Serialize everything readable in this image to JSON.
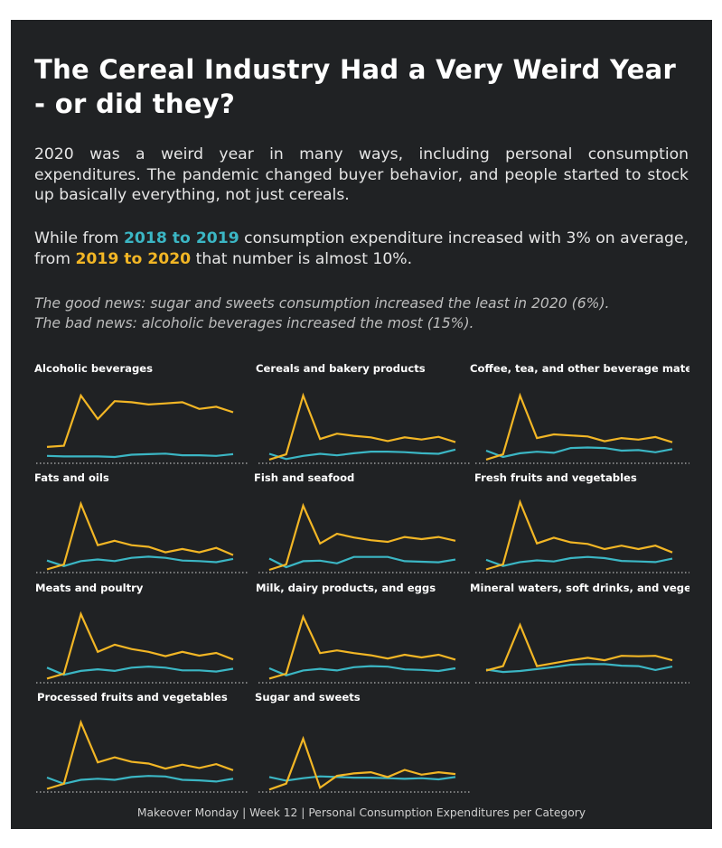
{
  "title": "The Cereal Industry Had a Very Weird Year - or did they?",
  "intro": {
    "p1": "2020 was a weird year in many ways, including personal consumption expenditures. The pandemic changed buyer behavior, and people started to stock up basically everything, not just cereals.",
    "p2_a": "While from ",
    "p2_hl1": "2018 to 2019",
    "p2_b": " consumption expenditure increased with 3% on average, from ",
    "p2_hl2": "2019 to 2020",
    "p2_c": " that number is almost 10%."
  },
  "news": {
    "good": "The good news: sugar and sweets consumption increased the least in 2020 (6%).",
    "bad": "The bad news: alcoholic beverages increased the most (15%)."
  },
  "footer": "Makeover Monday | Week 12 | Personal Consumption Expenditures per Category",
  "colors": {
    "background": "#202224",
    "series_2019": "#3bb6c4",
    "series_2020": "#f2b625",
    "text": "#ffffff"
  },
  "chart_data": [
    {
      "type": "line",
      "title": "Alcoholic beverages",
      "x": [
        1,
        2,
        3,
        4,
        5,
        6,
        7,
        8,
        9,
        10,
        11,
        12
      ],
      "series": [
        {
          "key": "2018 to 2019",
          "values": [
            2,
            1,
            1,
            1,
            0,
            4,
            5,
            6,
            3,
            3,
            2,
            5
          ]
        },
        {
          "key": "2019 to 2020",
          "values": [
            18,
            20,
            110,
            68,
            100,
            98,
            94,
            96,
            98,
            86,
            90,
            80
          ]
        }
      ]
    },
    {
      "type": "line",
      "title": "Cereals and bakery products",
      "x": [
        1,
        2,
        3,
        4,
        5,
        6,
        7,
        8,
        9,
        10,
        11,
        12
      ],
      "series": [
        {
          "key": "2018 to 2019",
          "values": [
            6,
            -4,
            2,
            6,
            3,
            7,
            10,
            10,
            9,
            7,
            6,
            14
          ]
        },
        {
          "key": "2019 to 2020",
          "values": [
            -5,
            5,
            116,
            34,
            44,
            40,
            37,
            30,
            37,
            33,
            38,
            28
          ]
        }
      ]
    },
    {
      "type": "line",
      "title": "Coffee, tea, and other beverage materials",
      "x": [
        1,
        2,
        3,
        4,
        5,
        6,
        7,
        8,
        9,
        10,
        11,
        12
      ],
      "series": [
        {
          "key": "2018 to 2019",
          "values": [
            12,
            0,
            7,
            10,
            8,
            17,
            18,
            17,
            12,
            13,
            9,
            15
          ]
        },
        {
          "key": "2019 to 2020",
          "values": [
            -5,
            5,
            117,
            36,
            43,
            41,
            39,
            30,
            36,
            33,
            38,
            28
          ]
        }
      ]
    },
    {
      "type": "line",
      "title": "Fats and oils",
      "x": [
        1,
        2,
        3,
        4,
        5,
        6,
        7,
        8,
        9,
        10,
        11,
        12
      ],
      "series": [
        {
          "key": "2018 to 2019",
          "values": [
            12,
            2,
            11,
            14,
            11,
            17,
            19,
            17,
            12,
            11,
            9,
            15
          ]
        },
        {
          "key": "2019 to 2020",
          "values": [
            -4,
            5,
            115,
            40,
            48,
            40,
            37,
            27,
            33,
            27,
            35,
            22
          ]
        }
      ]
    },
    {
      "type": "line",
      "title": "Fish and seafood",
      "x": [
        1,
        2,
        3,
        4,
        5,
        6,
        7,
        8,
        9,
        10,
        11,
        12
      ],
      "series": [
        {
          "key": "2018 to 2019",
          "values": [
            16,
            0,
            11,
            12,
            7,
            19,
            19,
            19,
            11,
            10,
            9,
            14
          ]
        },
        {
          "key": "2019 to 2020",
          "values": [
            -5,
            5,
            114,
            44,
            62,
            55,
            50,
            47,
            56,
            52,
            56,
            49
          ]
        }
      ]
    },
    {
      "type": "line",
      "title": "Fresh fruits and vegetables",
      "x": [
        1,
        2,
        3,
        4,
        5,
        6,
        7,
        8,
        9,
        10,
        11,
        12
      ],
      "series": [
        {
          "key": "2018 to 2019",
          "values": [
            13,
            2,
            9,
            12,
            10,
            16,
            18,
            16,
            11,
            10,
            9,
            15
          ]
        },
        {
          "key": "2019 to 2020",
          "values": [
            -4,
            5,
            115,
            42,
            52,
            44,
            41,
            32,
            38,
            32,
            38,
            26
          ]
        }
      ]
    },
    {
      "type": "line",
      "title": "Meats and poultry",
      "x": [
        1,
        2,
        3,
        4,
        5,
        6,
        7,
        8,
        9,
        10,
        11,
        12
      ],
      "series": [
        {
          "key": "2018 to 2019",
          "values": [
            16,
            3,
            10,
            13,
            10,
            16,
            18,
            16,
            11,
            11,
            9,
            14
          ]
        },
        {
          "key": "2019 to 2020",
          "values": [
            -4,
            5,
            114,
            45,
            58,
            50,
            45,
            37,
            45,
            38,
            43,
            31
          ]
        }
      ]
    },
    {
      "type": "line",
      "title": "Milk, dairy products, and eggs",
      "x": [
        1,
        2,
        3,
        4,
        5,
        6,
        7,
        8,
        9,
        10,
        11,
        12
      ],
      "series": [
        {
          "key": "2018 to 2019",
          "values": [
            15,
            2,
            11,
            14,
            11,
            17,
            19,
            18,
            13,
            12,
            10,
            15
          ]
        },
        {
          "key": "2019 to 2020",
          "values": [
            -4,
            5,
            110,
            43,
            48,
            43,
            39,
            33,
            40,
            35,
            40,
            31
          ]
        }
      ]
    },
    {
      "type": "line",
      "title": "Mineral waters, soft drinks, and vegetable juices",
      "x": [
        1,
        2,
        3,
        4,
        5,
        6,
        7,
        8,
        9,
        10,
        11,
        12
      ],
      "series": [
        {
          "key": "2018 to 2019",
          "values": [
            14,
            9,
            11,
            15,
            19,
            24,
            25,
            25,
            22,
            21,
            13,
            20
          ]
        },
        {
          "key": "2019 to 2020",
          "values": [
            12,
            21,
            105,
            21,
            27,
            33,
            38,
            33,
            42,
            41,
            42,
            33
          ]
        }
      ]
    },
    {
      "type": "line",
      "title": "Processed fruits and vegetables",
      "x": [
        1,
        2,
        3,
        4,
        5,
        6,
        7,
        8,
        9,
        10,
        11,
        12
      ],
      "series": [
        {
          "key": "2018 to 2019",
          "values": [
            16,
            5,
            12,
            14,
            12,
            17,
            19,
            18,
            12,
            11,
            9,
            14
          ]
        },
        {
          "key": "2019 to 2020",
          "values": [
            -4,
            5,
            114,
            43,
            52,
            44,
            41,
            32,
            39,
            33,
            40,
            29
          ]
        }
      ]
    },
    {
      "type": "line",
      "title": "Sugar and sweets",
      "x": [
        1,
        2,
        3,
        4,
        5,
        6,
        7,
        8,
        9,
        10,
        11,
        12
      ],
      "series": [
        {
          "key": "2018 to 2019",
          "values": [
            16,
            10,
            14,
            17,
            16,
            15,
            15,
            14,
            13,
            14,
            12,
            16
          ]
        },
        {
          "key": "2019 to 2020",
          "values": [
            -5,
            5,
            80,
            -2,
            18,
            22,
            24,
            16,
            28,
            20,
            24,
            21
          ]
        }
      ]
    }
  ]
}
